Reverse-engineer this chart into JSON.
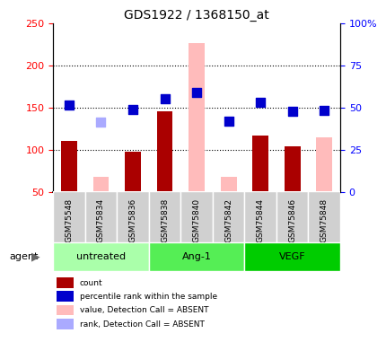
{
  "title": "GDS1922 / 1368150_at",
  "samples": [
    "GSM75548",
    "GSM75834",
    "GSM75836",
    "GSM75838",
    "GSM75840",
    "GSM75842",
    "GSM75844",
    "GSM75846",
    "GSM75848"
  ],
  "groups": [
    {
      "label": "untreated",
      "indices": [
        0,
        1,
        2
      ],
      "color": "#aaffaa"
    },
    {
      "label": "Ang-1",
      "indices": [
        3,
        4,
        5
      ],
      "color": "#55ee55"
    },
    {
      "label": "VEGF",
      "indices": [
        6,
        7,
        8
      ],
      "color": "#00cc00"
    }
  ],
  "bar_values": [
    110,
    null,
    98,
    145,
    null,
    null,
    117,
    104,
    null
  ],
  "bar_absent_values": [
    null,
    68,
    null,
    null,
    227,
    68,
    null,
    null,
    115
  ],
  "dot_values": [
    153,
    null,
    148,
    160,
    168,
    134,
    156,
    145,
    147
  ],
  "dot_absent_values": [
    null,
    133,
    null,
    null,
    null,
    null,
    null,
    null,
    null
  ],
  "bar_color": "#aa0000",
  "bar_absent_color": "#ffbbbb",
  "dot_color": "#0000cc",
  "dot_absent_color": "#aaaaff",
  "ylim_left": [
    50,
    250
  ],
  "ylim_right": [
    0,
    100
  ],
  "yticks_left": [
    50,
    100,
    150,
    200,
    250
  ],
  "yticks_right": [
    0,
    25,
    50,
    75,
    100
  ],
  "ytick_labels_right": [
    "0",
    "25",
    "50",
    "75",
    "100%"
  ],
  "grid_values": [
    100,
    150,
    200
  ],
  "bar_width": 0.5,
  "dot_size": 50
}
